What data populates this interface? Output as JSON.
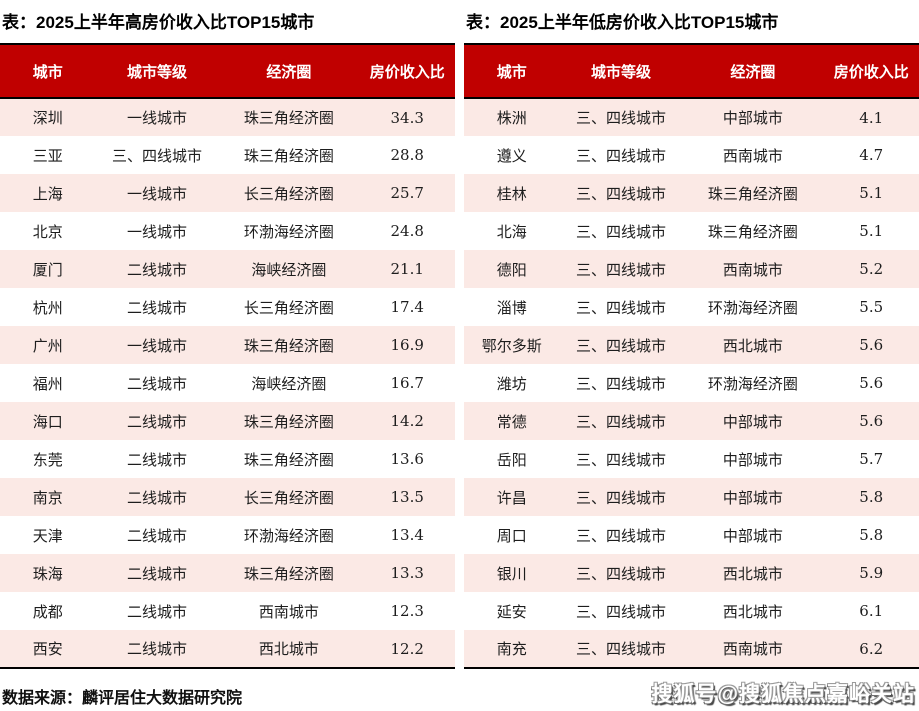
{
  "colors": {
    "header_bg": "#C00000",
    "header_text": "#FFFFFF",
    "row_alt_bg": "#FBE9E5",
    "rule": "#000000"
  },
  "footer": {
    "source_note": "数据来源：麟评居住大数据研究院",
    "watermark": "搜狐号@搜狐焦点嘉峪关站"
  },
  "chart_data": [
    {
      "type": "table",
      "title": "表：2025上半年高房价收入比TOP15城市",
      "columns": [
        "城市",
        "城市等级",
        "经济圈",
        "房价收入比"
      ],
      "rows": [
        [
          "深圳",
          "一线城市",
          "珠三角经济圈",
          "34.3"
        ],
        [
          "三亚",
          "三、四线城市",
          "珠三角经济圈",
          "28.8"
        ],
        [
          "上海",
          "一线城市",
          "长三角经济圈",
          "25.7"
        ],
        [
          "北京",
          "一线城市",
          "环渤海经济圈",
          "24.8"
        ],
        [
          "厦门",
          "二线城市",
          "海峡经济圈",
          "21.1"
        ],
        [
          "杭州",
          "二线城市",
          "长三角经济圈",
          "17.4"
        ],
        [
          "广州",
          "一线城市",
          "珠三角经济圈",
          "16.9"
        ],
        [
          "福州",
          "二线城市",
          "海峡经济圈",
          "16.7"
        ],
        [
          "海口",
          "二线城市",
          "珠三角经济圈",
          "14.2"
        ],
        [
          "东莞",
          "二线城市",
          "珠三角经济圈",
          "13.6"
        ],
        [
          "南京",
          "二线城市",
          "长三角经济圈",
          "13.5"
        ],
        [
          "天津",
          "二线城市",
          "环渤海经济圈",
          "13.4"
        ],
        [
          "珠海",
          "二线城市",
          "珠三角经济圈",
          "13.3"
        ],
        [
          "成都",
          "二线城市",
          "西南城市",
          "12.3"
        ],
        [
          "西安",
          "二线城市",
          "西北城市",
          "12.2"
        ]
      ]
    },
    {
      "type": "table",
      "title": "表：2025上半年低房价收入比TOP15城市",
      "columns": [
        "城市",
        "城市等级",
        "经济圈",
        "房价收入比"
      ],
      "rows": [
        [
          "株洲",
          "三、四线城市",
          "中部城市",
          "4.1"
        ],
        [
          "遵义",
          "三、四线城市",
          "西南城市",
          "4.7"
        ],
        [
          "桂林",
          "三、四线城市",
          "珠三角经济圈",
          "5.1"
        ],
        [
          "北海",
          "三、四线城市",
          "珠三角经济圈",
          "5.1"
        ],
        [
          "德阳",
          "三、四线城市",
          "西南城市",
          "5.2"
        ],
        [
          "淄博",
          "三、四线城市",
          "环渤海经济圈",
          "5.5"
        ],
        [
          "鄂尔多斯",
          "三、四线城市",
          "西北城市",
          "5.6"
        ],
        [
          "潍坊",
          "三、四线城市",
          "环渤海经济圈",
          "5.6"
        ],
        [
          "常德",
          "三、四线城市",
          "中部城市",
          "5.6"
        ],
        [
          "岳阳",
          "三、四线城市",
          "中部城市",
          "5.7"
        ],
        [
          "许昌",
          "三、四线城市",
          "中部城市",
          "5.8"
        ],
        [
          "周口",
          "三、四线城市",
          "中部城市",
          "5.8"
        ],
        [
          "银川",
          "三、四线城市",
          "西北城市",
          "5.9"
        ],
        [
          "延安",
          "三、四线城市",
          "西北城市",
          "6.1"
        ],
        [
          "南充",
          "三、四线城市",
          "西南城市",
          "6.2"
        ]
      ]
    }
  ]
}
